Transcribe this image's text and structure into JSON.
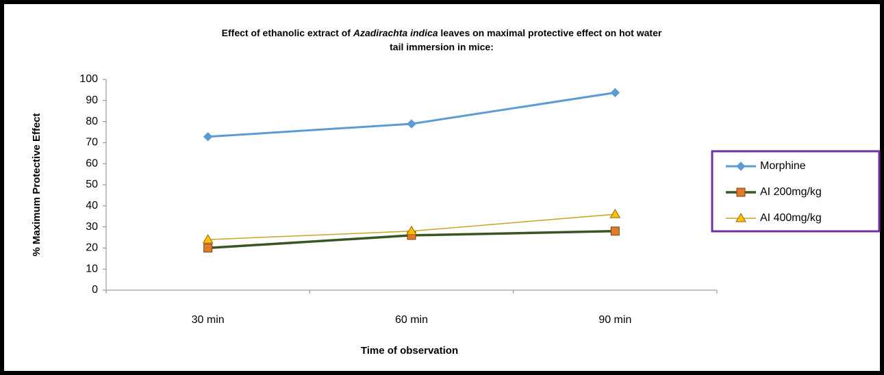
{
  "chart_data": {
    "type": "line",
    "title_line1": [
      "Effect of ethanolic extract of ",
      "Azadirachta indica",
      " leaves on maximal protective  effect on hot water"
    ],
    "title_line2": "tail immersion  in mice:",
    "x_label": "Time of observation",
    "y_label": "% Maximum  Protective  Effect",
    "categories": [
      "30 min",
      "60 min",
      "90 min"
    ],
    "series": [
      {
        "name": "Morphine",
        "color": "#5b9bd5",
        "marker": "diamond",
        "values": [
          72.8,
          78.9,
          93.7
        ]
      },
      {
        "name": "AI 200mg/kg",
        "color": "#375623",
        "marker": "square",
        "marker_color": "#e07b28",
        "values": [
          20,
          26,
          28
        ]
      },
      {
        "name": "AI 400mg/kg",
        "color": "#c9a227",
        "marker": "triangle",
        "marker_color": "#ffc000",
        "values": [
          24,
          28,
          36
        ]
      }
    ],
    "ylim": [
      0,
      100
    ],
    "yticks": [
      0,
      10,
      20,
      30,
      40,
      50,
      60,
      70,
      80,
      90,
      100
    ],
    "grid": false,
    "legend": "right"
  }
}
